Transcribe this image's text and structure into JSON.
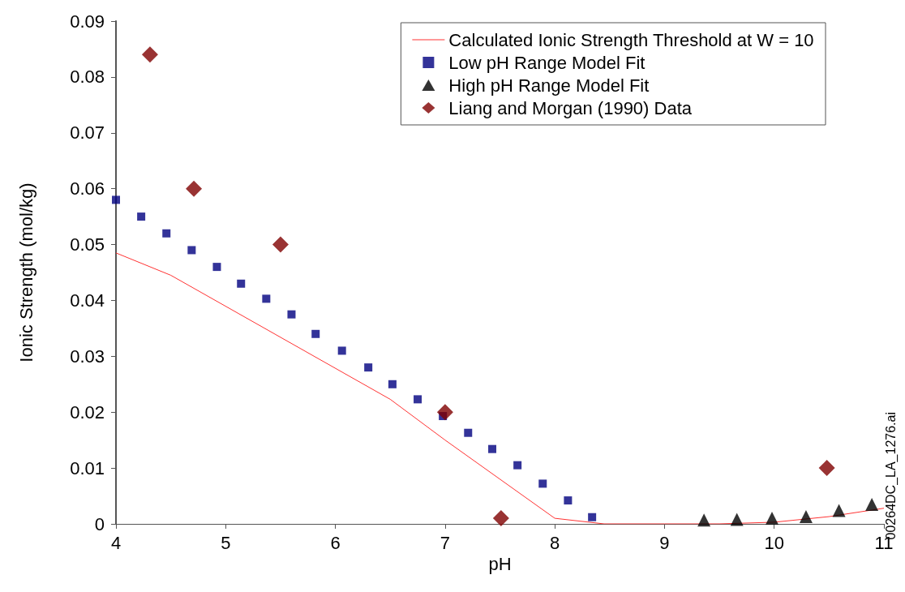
{
  "chart_data": {
    "type": "scatter",
    "xlabel": "pH",
    "ylabel": "Ionic Strength (mol/kg)",
    "xlim": [
      4,
      11
    ],
    "xticks": [
      4,
      5,
      6,
      7,
      8,
      9,
      10,
      11
    ],
    "ylim": [
      0,
      0.09
    ],
    "yticks": [
      0,
      0.01,
      0.02,
      0.03,
      0.04,
      0.05,
      0.06,
      0.07,
      0.08,
      0.09
    ],
    "grid": false,
    "legend": "top right",
    "annotations": [
      "00264DC_LA_1276.ai"
    ],
    "series": [
      {
        "name": "Calculated Ionic Strength Threshold at W = 10",
        "type": "line",
        "color": "#ff3333",
        "marker": "none",
        "line_style": "solid",
        "x": [
          4,
          4.5,
          6.5,
          7,
          8,
          8.45,
          9,
          9.5,
          10,
          10.5,
          11
        ],
        "values": [
          0.0485,
          0.0445,
          0.0223,
          0.015,
          0.001,
          0,
          0,
          0,
          0.0003,
          0.0013,
          0.0028
        ]
      },
      {
        "name": "Low pH Range Model Fit",
        "color": "#000080",
        "marker": "square",
        "x": [
          4,
          4.23,
          4.46,
          4.69,
          4.92,
          5.14,
          5.37,
          5.6,
          5.82,
          6.06,
          6.3,
          6.52,
          6.75,
          6.98,
          7.21,
          7.43,
          7.66,
          7.89,
          8.12,
          8.34
        ],
        "values": [
          0.058,
          0.055,
          0.052,
          0.049,
          0.046,
          0.043,
          0.0403,
          0.0375,
          0.034,
          0.031,
          0.028,
          0.025,
          0.0223,
          0.0193,
          0.0163,
          0.0134,
          0.0105,
          0.0072,
          0.0042,
          0.0012
        ]
      },
      {
        "name": "High pH Range Model Fit",
        "color": "#000000",
        "marker": "triangle",
        "x": [
          9.36,
          9.66,
          9.98,
          10.29,
          10.59,
          10.89
        ],
        "values": [
          0.0007,
          0.0008,
          0.001,
          0.0013,
          0.0024,
          0.0035
        ]
      },
      {
        "name": "Liang and Morgan (1990) Data",
        "color": "#800000",
        "marker": "diamond",
        "x": [
          4.31,
          4.71,
          5.5,
          7.0,
          7.51,
          10.48
        ],
        "values": [
          0.084,
          0.06,
          0.05,
          0.02,
          0.001,
          0.01
        ]
      }
    ]
  }
}
